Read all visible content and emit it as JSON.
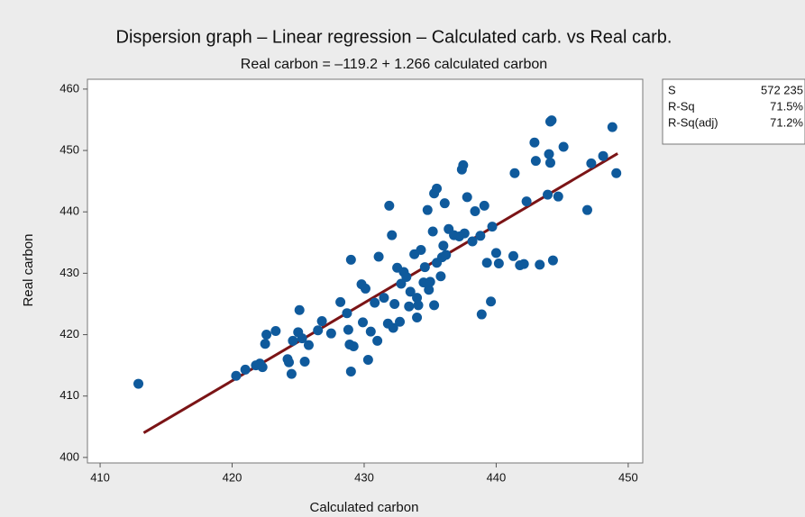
{
  "chart_data": {
    "type": "scatter",
    "title": "Dispersion graph – Linear regression – Calculated carb. vs Real carb.",
    "subtitle": "Real carbon = –119.2 + 1.266 calculated carbon",
    "x_label": "Calculated carbon",
    "y_label": "Real carbon",
    "xlim": [
      409.04,
      451.1
    ],
    "ylim": [
      399.1,
      461.6
    ],
    "xticks": [
      410,
      420,
      430,
      440,
      450
    ],
    "yticks": [
      400,
      410,
      420,
      430,
      440,
      450,
      460
    ],
    "grid": false,
    "points": {
      "color": "#0f5a9c",
      "x": [
        412.9,
        420.3,
        421.0,
        421.8,
        422.1,
        422.3,
        422.5,
        422.6,
        423.3,
        424.2,
        424.3,
        424.5,
        424.6,
        425.0,
        425.1,
        425.3,
        425.5,
        425.8,
        426.5,
        426.8,
        427.5,
        428.2,
        428.7,
        428.8,
        428.9,
        429.0,
        429.0,
        429.2,
        429.8,
        429.9,
        430.1,
        430.3,
        430.5,
        430.8,
        431.0,
        431.1,
        431.5,
        431.8,
        431.9,
        432.1,
        432.2,
        432.3,
        432.5,
        432.7,
        432.8,
        433.0,
        433.2,
        433.4,
        433.5,
        433.8,
        434.0,
        434.0,
        434.1,
        434.3,
        434.5,
        434.6,
        434.8,
        434.9,
        435.0,
        435.2,
        435.3,
        435.3,
        435.5,
        435.5,
        435.8,
        435.9,
        436.0,
        436.1,
        436.2,
        436.4,
        436.8,
        437.2,
        437.4,
        437.5,
        437.6,
        437.8,
        438.2,
        438.4,
        438.8,
        438.9,
        439.1,
        439.3,
        439.6,
        439.7,
        440.0,
        440.2,
        441.3,
        441.4,
        441.8,
        442.1,
        442.3,
        442.9,
        443.0,
        443.3,
        443.9,
        444.0,
        444.1,
        444.1,
        444.2,
        444.3,
        444.7,
        445.1,
        446.9,
        447.2,
        448.1,
        448.8,
        449.1
      ],
      "values": [
        412.0,
        413.3,
        414.3,
        415.0,
        415.3,
        414.7,
        418.5,
        420.0,
        420.6,
        416.0,
        415.5,
        413.6,
        419.0,
        420.4,
        424.0,
        419.4,
        415.6,
        418.3,
        420.7,
        422.2,
        420.2,
        425.3,
        423.5,
        420.8,
        418.4,
        414.0,
        432.2,
        418.1,
        428.2,
        422.0,
        427.5,
        415.9,
        420.5,
        425.2,
        419.0,
        432.7,
        426.0,
        421.8,
        441.0,
        436.2,
        421.1,
        425.0,
        430.9,
        422.1,
        428.3,
        430.2,
        429.4,
        424.6,
        427.0,
        433.1,
        426.0,
        422.8,
        424.8,
        433.8,
        428.5,
        431.0,
        440.3,
        427.3,
        428.6,
        436.8,
        424.8,
        443.0,
        443.8,
        431.7,
        429.5,
        432.6,
        434.5,
        441.4,
        433.0,
        437.2,
        436.2,
        436.0,
        446.9,
        447.6,
        436.5,
        442.4,
        435.2,
        440.1,
        436.1,
        423.3,
        441.0,
        431.7,
        425.4,
        437.6,
        433.3,
        431.6,
        432.8,
        446.3,
        431.3,
        431.5,
        441.7,
        451.3,
        448.3,
        431.4,
        442.8,
        449.4,
        454.7,
        448.0,
        454.9,
        432.1,
        442.5,
        450.6,
        440.3,
        447.9,
        449.1,
        453.8,
        446.3
      ]
    },
    "fit_line": {
      "color": "#7b1416",
      "x": [
        413.3,
        449.2
      ],
      "values": [
        404.0,
        449.5
      ]
    },
    "stats": [
      [
        "S",
        "572 235"
      ],
      [
        "R-Sq",
        "71.5%"
      ],
      [
        "R-Sq(adj)",
        "71.2%"
      ]
    ]
  }
}
